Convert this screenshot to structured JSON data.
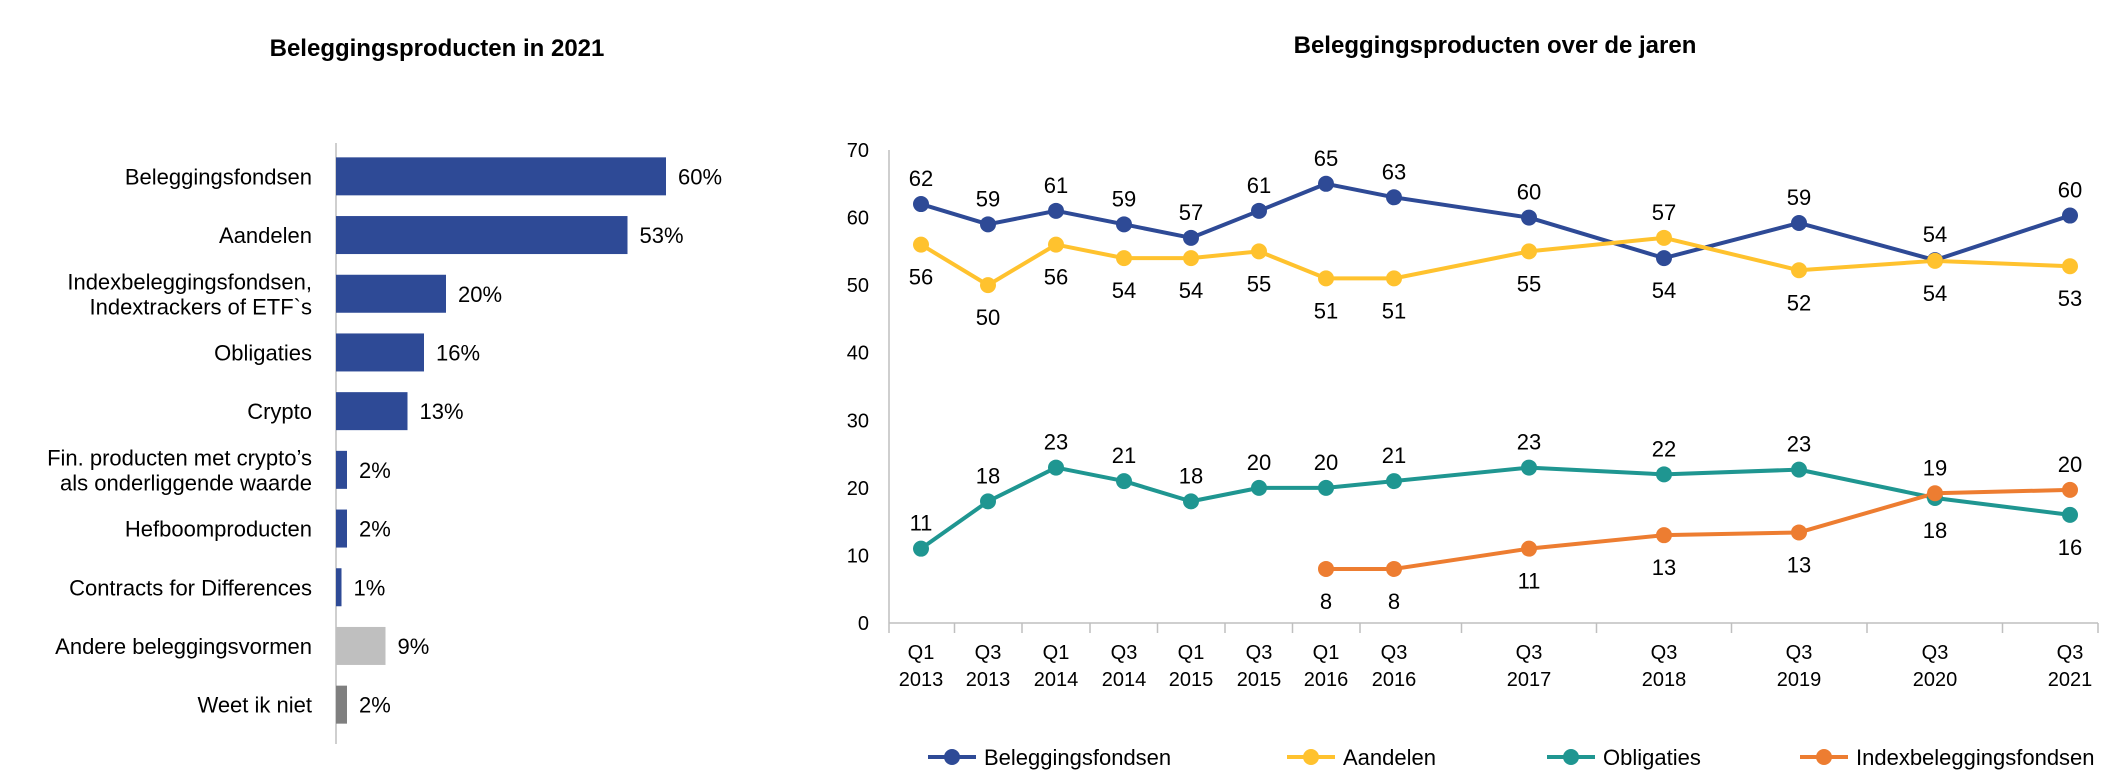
{
  "chart_data": [
    {
      "type": "bar",
      "orientation": "horizontal",
      "title": "Beleggingsproducten in 2021",
      "unit": "%",
      "bars": [
        {
          "lines": [
            "Beleggingsfondsen"
          ],
          "value": 60,
          "label": "60%",
          "color": "#2E4A96"
        },
        {
          "lines": [
            "Aandelen"
          ],
          "value": 53,
          "label": "53%",
          "color": "#2E4A96"
        },
        {
          "lines": [
            "Indexbeleggingsfondsen,",
            "Indextrackers of ETF`s"
          ],
          "value": 20,
          "label": "20%",
          "color": "#2E4A96"
        },
        {
          "lines": [
            "Obligaties"
          ],
          "value": 16,
          "label": "16%",
          "color": "#2E4A96"
        },
        {
          "lines": [
            "Crypto"
          ],
          "value": 13,
          "label": "13%",
          "color": "#2E4A96"
        },
        {
          "lines": [
            "Fin. producten met crypto’s",
            "als onderliggende waarde"
          ],
          "value": 2,
          "label": "2%",
          "color": "#2E4A96"
        },
        {
          "lines": [
            "Hefboomproducten"
          ],
          "value": 2,
          "label": "2%",
          "color": "#2E4A96"
        },
        {
          "lines": [
            "Contracts for Differences"
          ],
          "value": 1,
          "label": "1%",
          "color": "#2E4A96"
        },
        {
          "lines": [
            "Andere beleggingsvormen"
          ],
          "value": 9,
          "label": "9%",
          "color": "#BFBFBF"
        },
        {
          "lines": [
            "Weet ik niet"
          ],
          "value": 2,
          "label": "2%",
          "color": "#7F7F7F"
        }
      ]
    },
    {
      "type": "line",
      "title": "Beleggingsproducten over de jaren",
      "ylim": [
        0,
        70
      ],
      "yticks": [
        0,
        10,
        20,
        30,
        40,
        50,
        60,
        70
      ],
      "categories": [
        [
          "Q1",
          "2013"
        ],
        [
          "Q3",
          "2013"
        ],
        [
          "Q1",
          "2014"
        ],
        [
          "Q3",
          "2014"
        ],
        [
          "Q1",
          "2015"
        ],
        [
          "Q3",
          "2015"
        ],
        [
          "Q1",
          "2016"
        ],
        [
          "Q3",
          "2016"
        ],
        [
          "Q3",
          "2017"
        ],
        [
          "Q3",
          "2018"
        ],
        [
          "Q3",
          "2019"
        ],
        [
          "Q3",
          "2020"
        ],
        [
          "Q3",
          "2021"
        ]
      ],
      "series": [
        {
          "name": "Beleggingsfondsen",
          "color": "#2E4A96",
          "values": [
            62,
            59,
            61,
            59,
            57,
            61,
            65,
            63,
            60,
            54,
            59.2,
            53.7,
            60.3
          ],
          "labels": [
            "62",
            "59",
            "61",
            "59",
            "57",
            "61",
            "65",
            "63",
            "60",
            "54",
            "59",
            "54",
            "60"
          ],
          "label_pos": [
            "above",
            "above",
            "above",
            "above",
            "above",
            "above",
            "above",
            "above",
            "above",
            "below",
            "above",
            "above",
            "above"
          ]
        },
        {
          "name": "Aandelen",
          "color": "#FFC22E",
          "values": [
            56,
            50,
            56,
            54,
            54,
            55,
            51,
            51,
            55,
            57,
            52.2,
            53.6,
            52.8
          ],
          "labels": [
            "56",
            "50",
            "56",
            "54",
            "54",
            "55",
            "51",
            "51",
            "55",
            "57",
            "52",
            "54",
            "53"
          ],
          "label_pos": [
            "below",
            "below",
            "below",
            "below",
            "below",
            "below",
            "below",
            "below",
            "below",
            "above",
            "below",
            "below",
            "below"
          ]
        },
        {
          "name": "Obligaties",
          "color": "#1F9691",
          "values": [
            11,
            18,
            23,
            21,
            18,
            20,
            20,
            21,
            23,
            22,
            22.7,
            18.5,
            16
          ],
          "labels": [
            "11",
            "18",
            "23",
            "21",
            "18",
            "20",
            "20",
            "21",
            "23",
            "22",
            "23",
            "18",
            "16"
          ],
          "label_pos": [
            "above",
            "above",
            "above",
            "above",
            "above",
            "above",
            "above",
            "above",
            "above",
            "above",
            "above",
            "below",
            "below"
          ]
        },
        {
          "name": "Indexbeleggingsfondsen",
          "color": "#ED7D31",
          "values": [
            null,
            null,
            null,
            null,
            null,
            null,
            8,
            8,
            11,
            13,
            13.4,
            19.2,
            19.7
          ],
          "labels": [
            null,
            null,
            null,
            null,
            null,
            null,
            "8",
            "8",
            "11",
            "13",
            "13",
            "19",
            "20"
          ],
          "label_pos": [
            null,
            null,
            null,
            null,
            null,
            null,
            "below",
            "below",
            "below",
            "below",
            "below",
            "above",
            "above"
          ]
        }
      ]
    }
  ]
}
